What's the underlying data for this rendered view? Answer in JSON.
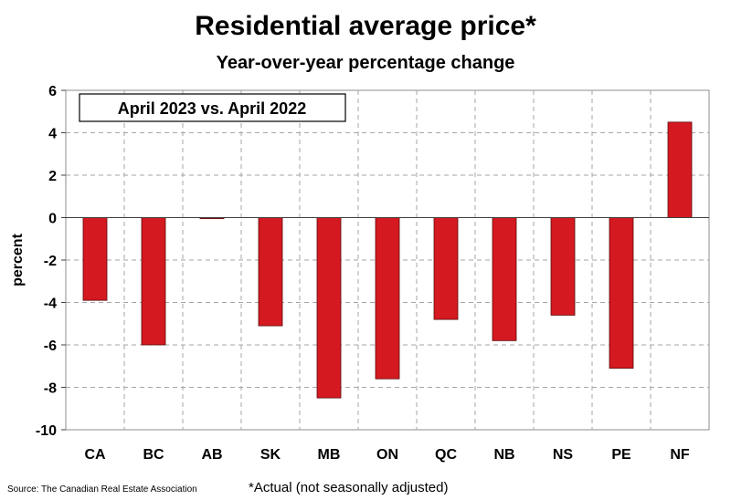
{
  "title": "Residential average price*",
  "subtitle": "Year-over-year percentage change",
  "source": "Source: The Canadian Real Estate Association",
  "footnote": "*Actual (not seasonally adjusted)",
  "colors": {
    "bar": "#d41920",
    "bar_stroke": "#5a0a0a",
    "grid": "#a6a6a6"
  },
  "chart_data": {
    "type": "bar",
    "legend_label": "April 2023 vs. April 2022",
    "ylabel": "percent",
    "ylim": [
      -10,
      6
    ],
    "yticks": [
      6,
      4,
      2,
      0,
      -2,
      -4,
      -6,
      -8,
      -10
    ],
    "grid": true,
    "categories": [
      "CA",
      "BC",
      "AB",
      "SK",
      "MB",
      "ON",
      "QC",
      "NB",
      "NS",
      "PE",
      "NF"
    ],
    "values": [
      -3.9,
      -6.0,
      -0.05,
      -5.1,
      -8.5,
      -7.6,
      -4.8,
      -5.8,
      -4.6,
      -7.1,
      4.5
    ]
  }
}
